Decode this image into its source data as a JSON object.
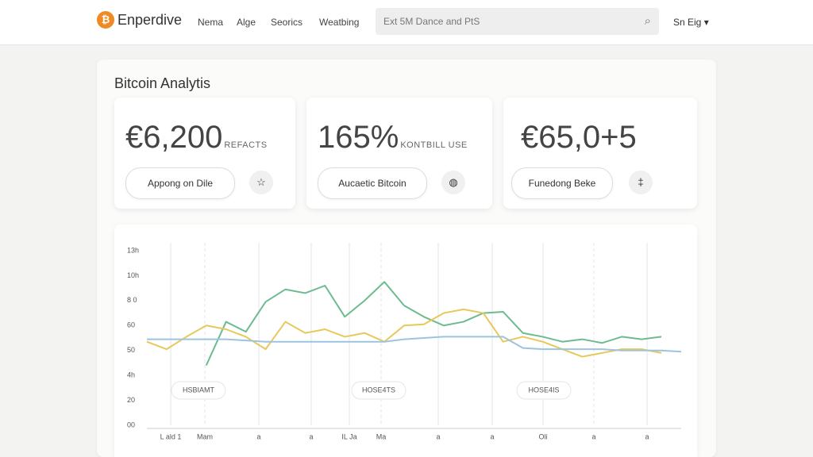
{
  "header": {
    "logo": "Enperdive",
    "nav": [
      "Nema",
      "Alge",
      "Seorics",
      "Weatbing"
    ],
    "search": "Ext 5M Dance and PtS",
    "language": "Sn Eig"
  },
  "dashboard": {
    "title": "Bitcoin Analytis",
    "stats": [
      {
        "value": "€6,200",
        "unit": "REFACTS",
        "button": "Appong on Dile"
      },
      {
        "value": "165%",
        "unit": "KONTBILL USE",
        "button": "Aucaetic Bitcoin"
      },
      {
        "value": "€65,0+5",
        "button": "Funedong Beke"
      }
    ],
    "chart": {
      "type": "line",
      "y_labels": [
        "13h",
        "10h",
        "8 0",
        "60",
        "50",
        "4h",
        "20",
        "00"
      ],
      "x_labels": [
        "L ald 1",
        "Mam",
        "a",
        "a",
        "IL Ja",
        "Ma",
        "a",
        "a",
        "Oli",
        "a",
        "a"
      ],
      "annotations": [
        "HSBIAMT",
        "HOSE4TS",
        "HOSE4IS"
      ],
      "ylim": [
        0,
        140
      ],
      "xlim": [
        0,
        27
      ],
      "x": [
        0,
        1,
        2,
        3,
        4,
        5,
        6,
        7,
        8,
        9,
        10,
        11,
        12,
        13,
        14,
        15,
        16,
        17,
        18,
        19,
        20,
        21,
        22,
        23,
        24,
        25,
        26,
        27
      ],
      "series": [
        {
          "color": "#6dbb8f",
          "values": [
            null,
            null,
            null,
            48,
            83,
            75,
            99,
            109,
            106,
            112,
            87,
            100,
            115,
            96,
            87,
            80,
            83,
            90,
            91,
            74,
            71,
            67,
            69,
            66,
            71,
            69,
            71,
            null
          ]
        },
        {
          "color": "#e8c85a",
          "values": [
            67,
            61,
            71,
            80,
            77,
            71,
            61,
            83,
            74,
            77,
            71,
            74,
            67,
            80,
            81,
            90,
            93,
            90,
            67,
            71,
            67,
            61,
            55,
            58,
            61,
            61,
            58,
            null
          ]
        },
        {
          "color": "#9cc4e0",
          "values": [
            69,
            69,
            69,
            69,
            69,
            68,
            67,
            67,
            67,
            67,
            67,
            67,
            67,
            69,
            70,
            71,
            71,
            71,
            71,
            62,
            61,
            61,
            61,
            61,
            60,
            60,
            60,
            59
          ]
        }
      ]
    }
  }
}
